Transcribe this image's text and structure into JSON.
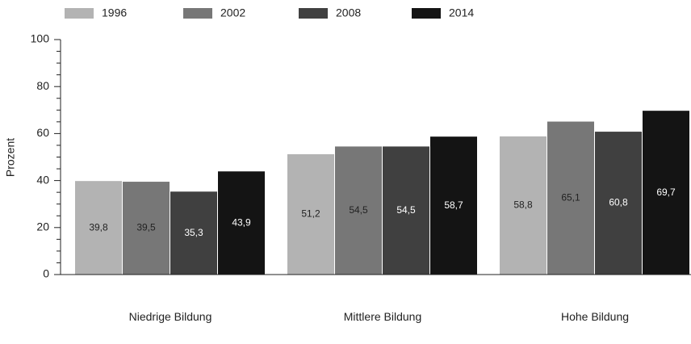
{
  "chart_data": {
    "type": "bar",
    "y_label": "Prozent",
    "categories": [
      "Niedrige Bildung",
      "Mittlere Bildung",
      "Hohe Bildung"
    ],
    "series": [
      {
        "name": "1996",
        "color": "#b3b3b3",
        "values": [
          39.8,
          51.2,
          58.8
        ],
        "value_labels": [
          "39,8",
          "51,2",
          "58,8"
        ]
      },
      {
        "name": "2002",
        "color": "#777777",
        "values": [
          39.5,
          54.5,
          65.1
        ],
        "value_labels": [
          "39,5",
          "54,5",
          "65,1"
        ]
      },
      {
        "name": "2008",
        "color": "#404040",
        "values": [
          35.3,
          54.5,
          60.8
        ],
        "value_labels": [
          "35,3",
          "54,5",
          "60,8"
        ]
      },
      {
        "name": "2014",
        "color": "#141414",
        "values": [
          43.9,
          58.7,
          69.7
        ],
        "value_labels": [
          "43,9",
          "58,7",
          "69,7"
        ]
      }
    ],
    "ylim": [
      0,
      100
    ],
    "yticks": [
      0,
      20,
      40,
      60,
      80,
      100
    ],
    "yminorticks": [
      5,
      10,
      15,
      25,
      30,
      35,
      45,
      50,
      55,
      65,
      70,
      75,
      85,
      90,
      95
    ],
    "legend": "top"
  }
}
